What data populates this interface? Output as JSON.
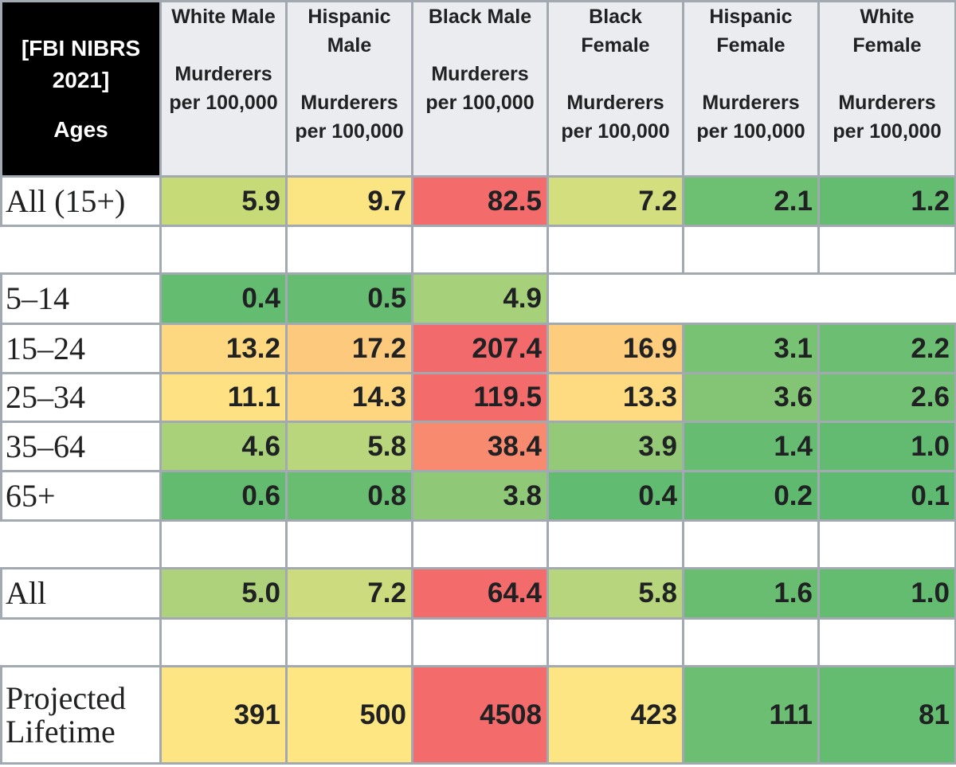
{
  "table": {
    "corner": {
      "title": "[FBI NIBRS 2021]",
      "label": "Ages"
    },
    "columns": [
      {
        "group": "White Male",
        "unit": "Murderers per 100,000"
      },
      {
        "group": "Hispanic Male",
        "unit": "Murderers per 100,000"
      },
      {
        "group": "Black Male",
        "unit": "Murderers per 100,000"
      },
      {
        "group": "Black Female",
        "unit": "Murderers per 100,000"
      },
      {
        "group": "Hispanic Female",
        "unit": "Murderers per 100,000"
      },
      {
        "group": "White Female",
        "unit": "Murderers per 100,000"
      }
    ],
    "rows": [
      {
        "label": "All (15+)",
        "values": [
          "5.9",
          "9.7",
          "82.5",
          "7.2",
          "2.1",
          "1.2"
        ],
        "colors": [
          "#c6da78",
          "#fbe582",
          "#f46b6b",
          "#d3de7f",
          "#6dbf72",
          "#64bc70"
        ]
      },
      {
        "label": "5–14",
        "values": [
          "0.4",
          "0.5",
          "4.9",
          null,
          null,
          null
        ],
        "colors": [
          "#63bc70",
          "#66bd71",
          "#a6d07a",
          null,
          null,
          null
        ]
      },
      {
        "label": "15–24",
        "values": [
          "13.2",
          "17.2",
          "207.4",
          "16.9",
          "3.1",
          "2.2"
        ],
        "colors": [
          "#fed880",
          "#fdc97c",
          "#f26a6b",
          "#fdcc7d",
          "#78c274",
          "#6cbe72"
        ]
      },
      {
        "label": "25–34",
        "values": [
          "11.1",
          "14.3",
          "119.5",
          "13.3",
          "3.6",
          "2.6"
        ],
        "colors": [
          "#fee183",
          "#fed680",
          "#f46b6c",
          "#fedb81",
          "#84c575",
          "#72c073"
        ]
      },
      {
        "label": "35–64",
        "values": [
          "4.6",
          "5.8",
          "38.4",
          "3.9",
          "1.4",
          "1.0"
        ],
        "colors": [
          "#a8d17a",
          "#b9d67c",
          "#f88a70",
          "#93c977",
          "#66bd71",
          "#62bb70"
        ]
      },
      {
        "label": "65+",
        "values": [
          "0.6",
          "0.8",
          "3.8",
          "0.4",
          "0.2",
          "0.1"
        ],
        "colors": [
          "#63bb70",
          "#68bd71",
          "#8fc877",
          "#61bb70",
          "#5fba70",
          "#5eba70"
        ]
      },
      {
        "label": "All",
        "values": [
          "5.0",
          "7.2",
          "64.4",
          "5.8",
          "1.6",
          "1.0"
        ],
        "colors": [
          "#aed27b",
          "#cbdb7e",
          "#f46b6b",
          "#b6d57c",
          "#68bd71",
          "#63bc70"
        ]
      },
      {
        "label": "Projected Lifetime",
        "values": [
          "391",
          "500",
          "4508",
          "423",
          "111",
          "81"
        ],
        "colors": [
          "#fee583",
          "#fee683",
          "#f46b6b",
          "#fee583",
          "#6cbe72",
          "#63bc70"
        ]
      }
    ]
  }
}
